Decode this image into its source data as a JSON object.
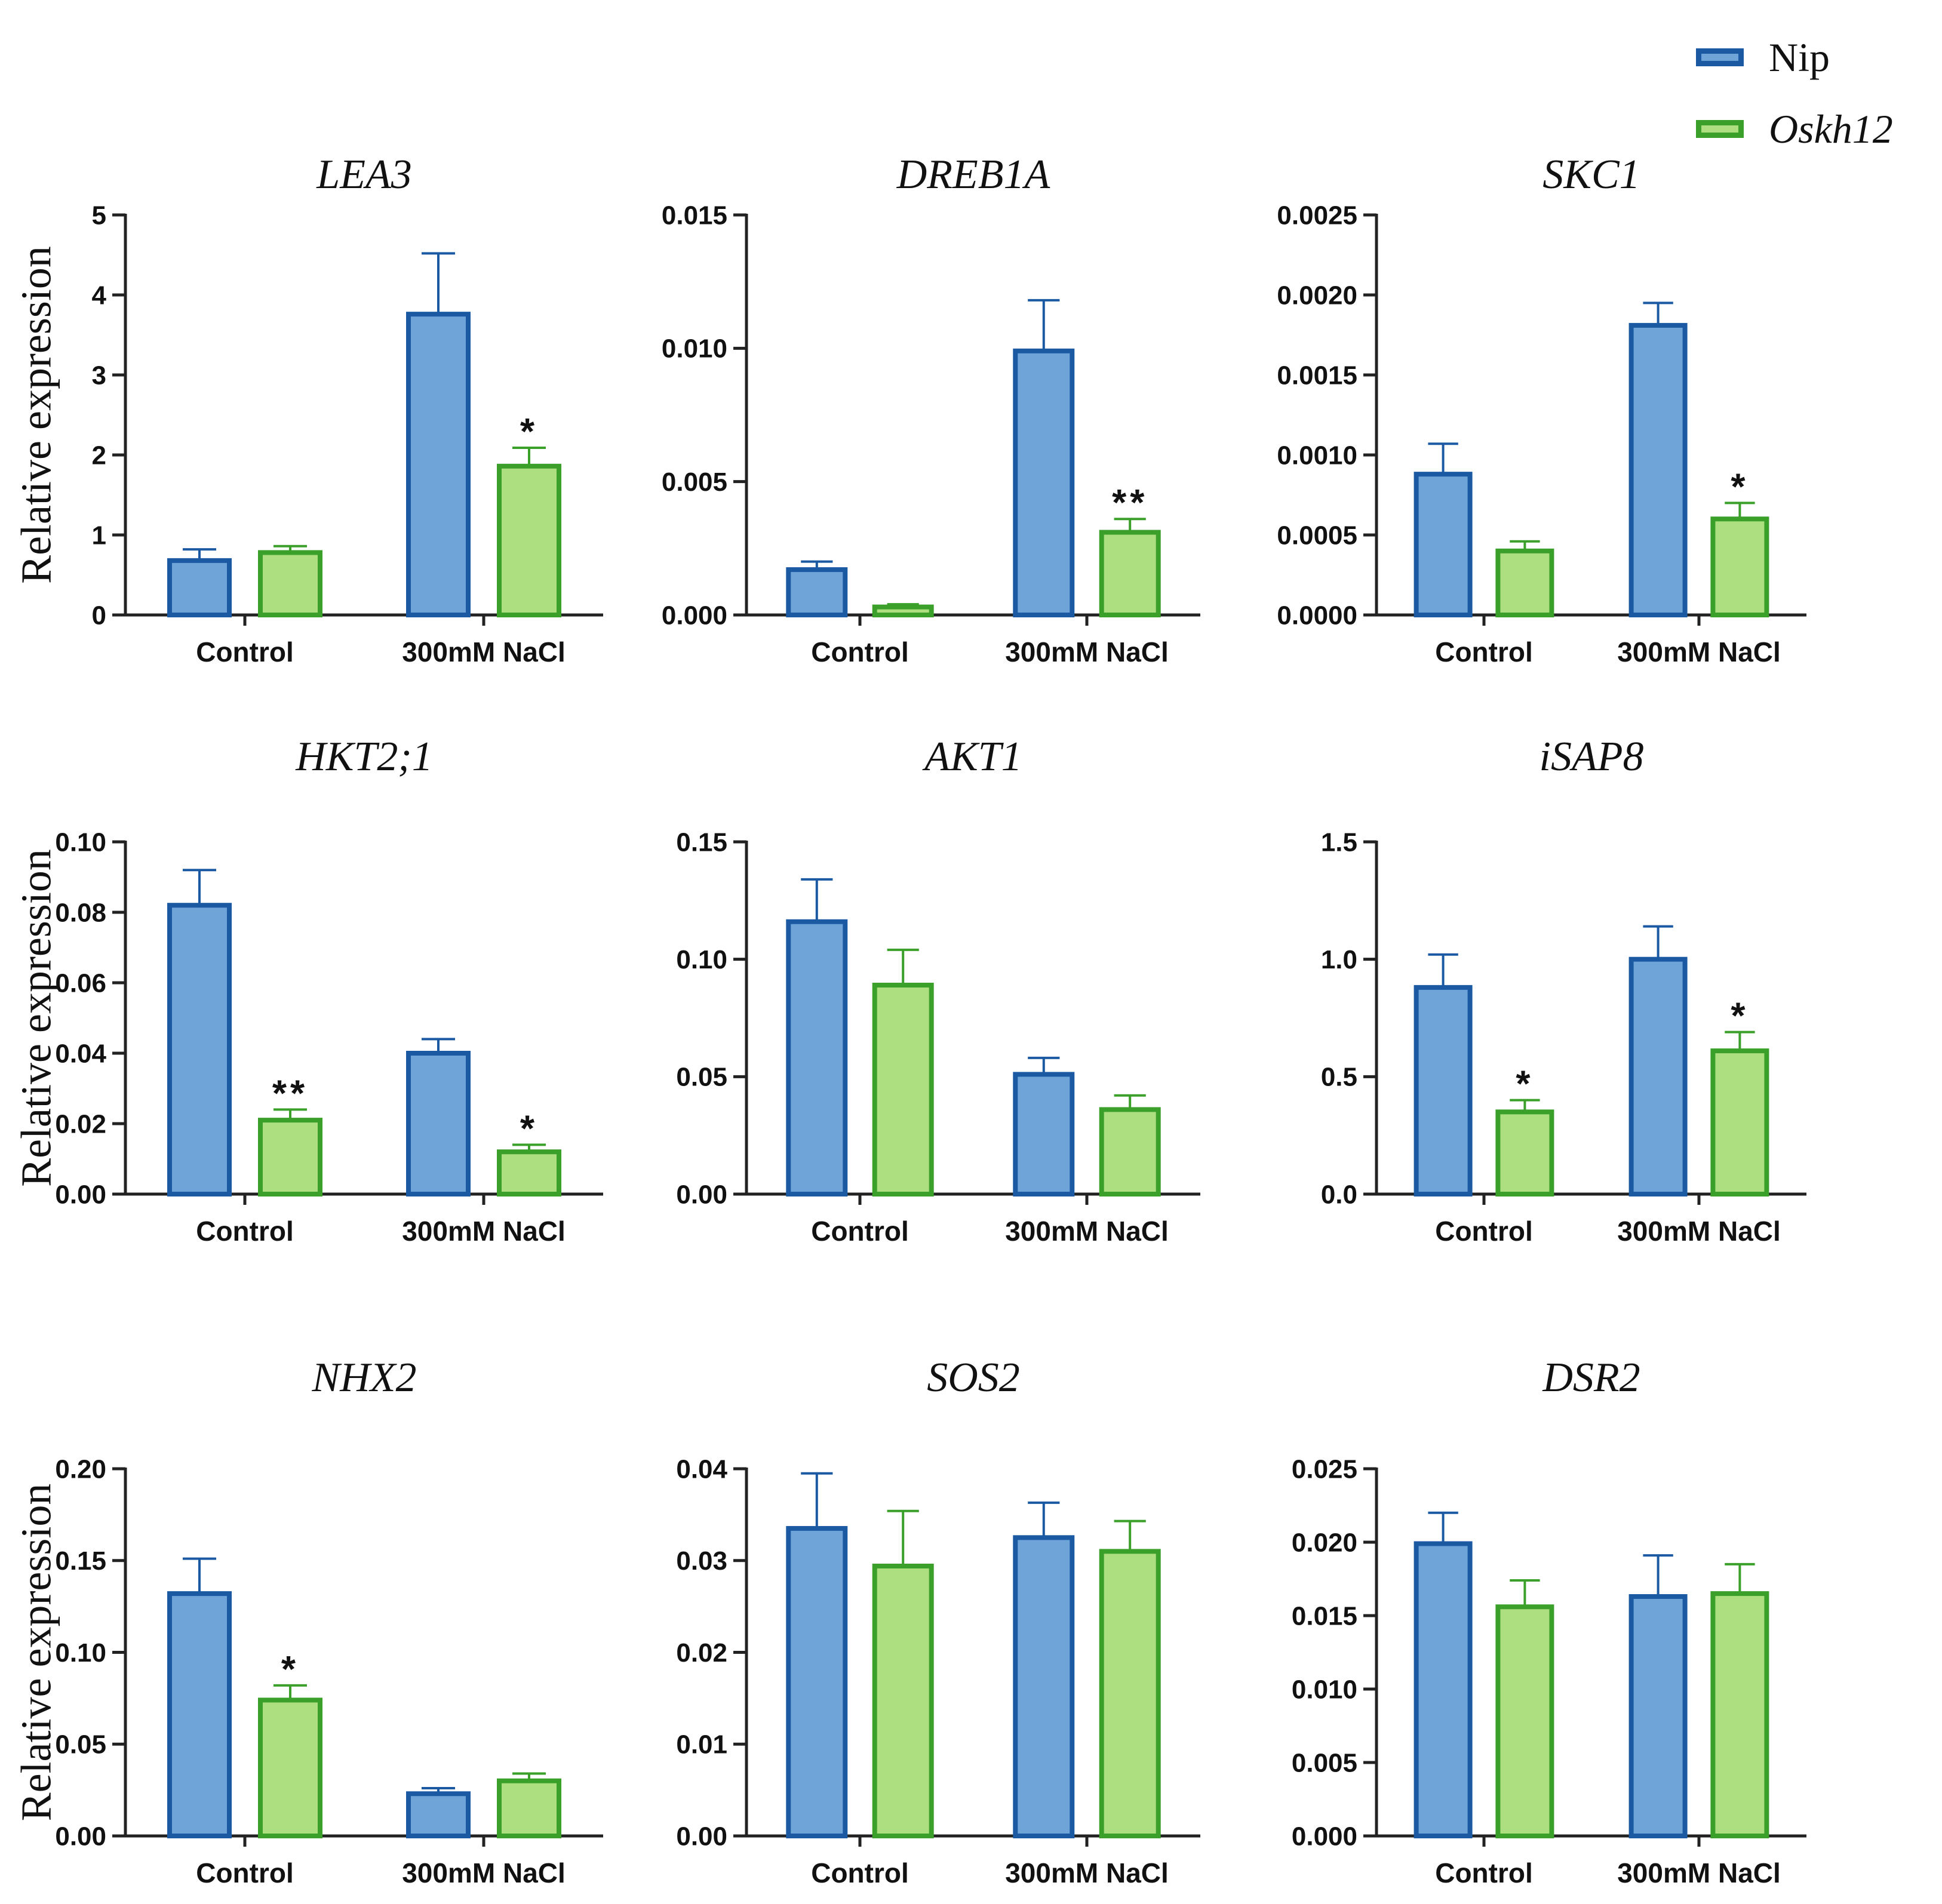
{
  "figure": {
    "ylabel": "Relative expression",
    "colors": {
      "nip_fill": "#6fa4d9",
      "nip_stroke": "#1b5aa3",
      "oskh12_fill": "#addf81",
      "oskh12_stroke": "#3aa02a",
      "axis": "#222222"
    }
  },
  "legend": {
    "items": [
      {
        "label": "Nip",
        "italic": false
      },
      {
        "label": "Oskh12",
        "italic": true
      }
    ]
  },
  "chart_data": [
    {
      "type": "bar",
      "title": "LEA3",
      "ylabel": "Relative expression",
      "categories": [
        "Control",
        "300mM NaCl"
      ],
      "ylim": [
        0,
        5
      ],
      "yticks": [
        "0",
        "1",
        "2",
        "3",
        "4",
        "5"
      ],
      "series": [
        {
          "name": "Nip",
          "values": [
            0.68,
            3.76
          ],
          "errors": [
            0.14,
            0.76
          ],
          "sig": [
            "",
            ""
          ]
        },
        {
          "name": "Oskh12",
          "values": [
            0.78,
            1.86
          ],
          "errors": [
            0.08,
            0.23
          ],
          "sig": [
            "",
            "*"
          ]
        }
      ]
    },
    {
      "type": "bar",
      "title": "DREB1A",
      "ylabel": "",
      "categories": [
        "Control",
        "300mM NaCl"
      ],
      "ylim": [
        0,
        0.015
      ],
      "yticks": [
        "0.000",
        "0.005",
        "0.010",
        "0.015"
      ],
      "series": [
        {
          "name": "Nip",
          "values": [
            0.0017,
            0.0099
          ],
          "errors": [
            0.0003,
            0.0019
          ],
          "sig": [
            "",
            ""
          ]
        },
        {
          "name": "Oskh12",
          "values": [
            0.0003,
            0.0031
          ],
          "errors": [
            0.0001,
            0.0005
          ],
          "sig": [
            "",
            "**"
          ]
        }
      ]
    },
    {
      "type": "bar",
      "title": "SKC1",
      "ylabel": "",
      "categories": [
        "Control",
        "300mM NaCl"
      ],
      "ylim": [
        0,
        0.0025
      ],
      "yticks": [
        "0.0000",
        "0.0005",
        "0.0010",
        "0.0015",
        "0.0020",
        "0.0025"
      ],
      "series": [
        {
          "name": "Nip",
          "values": [
            0.00088,
            0.00181
          ],
          "errors": [
            0.00019,
            0.00014
          ],
          "sig": [
            "",
            ""
          ]
        },
        {
          "name": "Oskh12",
          "values": [
            0.0004,
            0.0006
          ],
          "errors": [
            6e-05,
            0.0001
          ],
          "sig": [
            "",
            "*"
          ]
        }
      ]
    },
    {
      "type": "bar",
      "title": "HKT2;1",
      "ylabel": "Relative expression",
      "categories": [
        "Control",
        "300mM NaCl"
      ],
      "ylim": [
        0,
        0.1
      ],
      "yticks": [
        "0.00",
        "0.02",
        "0.04",
        "0.06",
        "0.08",
        "0.10"
      ],
      "series": [
        {
          "name": "Nip",
          "values": [
            0.082,
            0.04
          ],
          "errors": [
            0.01,
            0.004
          ],
          "sig": [
            "",
            ""
          ]
        },
        {
          "name": "Oskh12",
          "values": [
            0.021,
            0.012
          ],
          "errors": [
            0.003,
            0.002
          ],
          "sig": [
            "**",
            "*"
          ]
        }
      ]
    },
    {
      "type": "bar",
      "title": "AKT1",
      "ylabel": "",
      "categories": [
        "Control",
        "300mM NaCl"
      ],
      "ylim": [
        0,
        0.15
      ],
      "yticks": [
        "0.00",
        "0.05",
        "0.10",
        "0.15"
      ],
      "series": [
        {
          "name": "Nip",
          "values": [
            0.116,
            0.051
          ],
          "errors": [
            0.018,
            0.007
          ],
          "sig": [
            "",
            ""
          ]
        },
        {
          "name": "Oskh12",
          "values": [
            0.089,
            0.036
          ],
          "errors": [
            0.015,
            0.006
          ],
          "sig": [
            "",
            ""
          ]
        }
      ]
    },
    {
      "type": "bar",
      "title": "iSAP8",
      "ylabel": "",
      "categories": [
        "Control",
        "300mM NaCl"
      ],
      "ylim": [
        0,
        1.5
      ],
      "yticks": [
        "0.0",
        "0.5",
        "1.0",
        "1.5"
      ],
      "series": [
        {
          "name": "Nip",
          "values": [
            0.88,
            1.0
          ],
          "errors": [
            0.14,
            0.14
          ],
          "sig": [
            "",
            ""
          ]
        },
        {
          "name": "Oskh12",
          "values": [
            0.35,
            0.61
          ],
          "errors": [
            0.05,
            0.08
          ],
          "sig": [
            "*",
            "*"
          ]
        }
      ]
    },
    {
      "type": "bar",
      "title": "NHX2",
      "ylabel": "Relative expression",
      "categories": [
        "Control",
        "300mM NaCl"
      ],
      "ylim": [
        0,
        0.2
      ],
      "yticks": [
        "0.00",
        "0.05",
        "0.10",
        "0.15",
        "0.20"
      ],
      "series": [
        {
          "name": "Nip",
          "values": [
            0.132,
            0.023
          ],
          "errors": [
            0.019,
            0.003
          ],
          "sig": [
            "",
            ""
          ]
        },
        {
          "name": "Oskh12",
          "values": [
            0.074,
            0.03
          ],
          "errors": [
            0.008,
            0.004
          ],
          "sig": [
            "*",
            ""
          ]
        }
      ]
    },
    {
      "type": "bar",
      "title": "SOS2",
      "ylabel": "",
      "categories": [
        "Control",
        "300mM NaCl"
      ],
      "ylim": [
        0,
        0.04
      ],
      "yticks": [
        "0.00",
        "0.01",
        "0.02",
        "0.03",
        "0.04"
      ],
      "series": [
        {
          "name": "Nip",
          "values": [
            0.0335,
            0.0325
          ],
          "errors": [
            0.006,
            0.0038
          ],
          "sig": [
            "",
            ""
          ]
        },
        {
          "name": "Oskh12",
          "values": [
            0.0294,
            0.031
          ],
          "errors": [
            0.006,
            0.0033
          ],
          "sig": [
            "",
            ""
          ]
        }
      ]
    },
    {
      "type": "bar",
      "title": "DSR2",
      "ylabel": "",
      "categories": [
        "Control",
        "300mM NaCl"
      ],
      "ylim": [
        0,
        0.025
      ],
      "yticks": [
        "0.000",
        "0.005",
        "0.010",
        "0.015",
        "0.020",
        "0.025"
      ],
      "series": [
        {
          "name": "Nip",
          "values": [
            0.0199,
            0.0163
          ],
          "errors": [
            0.0021,
            0.0028
          ],
          "sig": [
            "",
            ""
          ]
        },
        {
          "name": "Oskh12",
          "values": [
            0.0156,
            0.0165
          ],
          "errors": [
            0.0018,
            0.002
          ],
          "sig": [
            "",
            ""
          ]
        }
      ]
    }
  ]
}
